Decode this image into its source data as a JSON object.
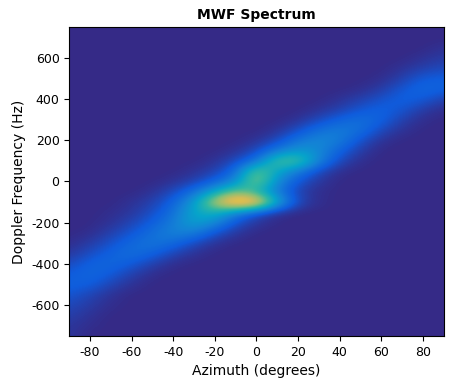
{
  "chart_data": {
    "type": "heatmap",
    "title": "MWF Spectrum",
    "x_label": "Azimuth (degrees)",
    "y_label": "Doppler Frequency (Hz)",
    "xlim": [
      -90,
      90
    ],
    "ylim": [
      -750,
      750
    ],
    "xticks": [
      -80,
      -60,
      -40,
      -20,
      0,
      20,
      40,
      60,
      80
    ],
    "yticks": [
      -600,
      -400,
      -200,
      0,
      200,
      400,
      600
    ],
    "x": [
      -90,
      -80,
      -70,
      -60,
      -50,
      -40,
      -30,
      -20,
      -10,
      0,
      10,
      20,
      30,
      40,
      50,
      60,
      70,
      80,
      90
    ],
    "y": [
      -750,
      -700,
      -650,
      -600,
      -550,
      -500,
      -450,
      -400,
      -350,
      -300,
      -250,
      -200,
      -150,
      -100,
      -50,
      0,
      50,
      100,
      150,
      200,
      250,
      300,
      350,
      400,
      450,
      500,
      550,
      600,
      650,
      700,
      750
    ],
    "cells": [
      [
        8,
        5,
        5,
        5,
        5,
        5,
        5,
        5,
        5,
        5,
        5,
        5,
        5,
        5,
        5,
        5,
        5,
        5,
        5
      ],
      [
        8,
        6,
        5,
        5,
        5,
        5,
        5,
        5,
        5,
        5,
        5,
        5,
        5,
        5,
        5,
        5,
        5,
        5,
        5
      ],
      [
        10,
        7,
        5,
        5,
        5,
        5,
        5,
        5,
        5,
        5,
        5,
        5,
        5,
        5,
        5,
        5,
        5,
        5,
        5
      ],
      [
        12,
        9,
        6,
        5,
        5,
        5,
        5,
        5,
        5,
        5,
        5,
        5,
        5,
        5,
        5,
        5,
        5,
        5,
        5
      ],
      [
        15,
        11,
        7,
        5,
        5,
        5,
        5,
        5,
        5,
        5,
        5,
        5,
        5,
        5,
        5,
        5,
        5,
        5,
        5
      ],
      [
        18,
        17,
        11,
        7,
        5,
        5,
        5,
        5,
        5,
        5,
        5,
        5,
        5,
        5,
        5,
        5,
        5,
        5,
        5
      ],
      [
        16,
        20,
        16,
        10,
        6,
        5,
        5,
        5,
        5,
        5,
        5,
        5,
        5,
        5,
        5,
        5,
        5,
        5,
        5
      ],
      [
        12,
        18,
        20,
        16,
        10,
        6,
        5,
        5,
        5,
        5,
        5,
        5,
        5,
        5,
        5,
        5,
        5,
        5,
        5
      ],
      [
        8,
        13,
        18,
        22,
        18,
        11,
        7,
        5,
        5,
        5,
        5,
        5,
        5,
        5,
        5,
        5,
        5,
        5,
        5
      ],
      [
        6,
        9,
        14,
        20,
        24,
        20,
        12,
        7,
        5,
        5,
        5,
        5,
        5,
        5,
        5,
        5,
        5,
        5,
        5
      ],
      [
        5,
        6,
        10,
        15,
        22,
        28,
        26,
        14,
        8,
        5,
        5,
        5,
        5,
        5,
        5,
        5,
        5,
        5,
        5
      ],
      [
        5,
        5,
        7,
        11,
        17,
        26,
        38,
        30,
        14,
        8,
        5,
        5,
        5,
        5,
        5,
        5,
        5,
        5,
        5
      ],
      [
        5,
        5,
        6,
        8,
        13,
        22,
        40,
        45,
        28,
        14,
        7,
        5,
        5,
        5,
        5,
        5,
        5,
        5,
        5
      ],
      [
        5,
        5,
        5,
        7,
        10,
        18,
        35,
        70,
        95,
        90,
        40,
        12,
        6,
        5,
        5,
        5,
        5,
        5,
        5
      ],
      [
        5,
        5,
        5,
        5,
        7,
        12,
        22,
        40,
        60,
        45,
        25,
        10,
        6,
        5,
        5,
        5,
        5,
        5,
        5
      ],
      [
        5,
        5,
        5,
        5,
        5,
        7,
        10,
        18,
        30,
        65,
        30,
        15,
        8,
        5,
        5,
        5,
        5,
        5,
        5
      ],
      [
        5,
        5,
        5,
        5,
        5,
        5,
        7,
        10,
        20,
        60,
        40,
        25,
        12,
        6,
        5,
        5,
        5,
        5,
        5
      ],
      [
        5,
        5,
        5,
        5,
        5,
        5,
        5,
        7,
        12,
        22,
        55,
        55,
        28,
        12,
        6,
        5,
        5,
        5,
        5
      ],
      [
        5,
        5,
        5,
        5,
        5,
        5,
        5,
        5,
        7,
        12,
        25,
        35,
        30,
        18,
        9,
        5,
        5,
        5,
        5
      ],
      [
        5,
        5,
        5,
        5,
        5,
        5,
        5,
        5,
        5,
        7,
        12,
        24,
        30,
        26,
        14,
        7,
        5,
        5,
        5
      ],
      [
        5,
        5,
        5,
        5,
        5,
        5,
        5,
        5,
        5,
        5,
        7,
        13,
        22,
        26,
        22,
        12,
        7,
        5,
        5
      ],
      [
        5,
        5,
        5,
        5,
        5,
        5,
        5,
        5,
        5,
        5,
        5,
        7,
        12,
        18,
        22,
        18,
        10,
        6,
        5
      ],
      [
        5,
        5,
        5,
        5,
        5,
        5,
        5,
        5,
        5,
        5,
        5,
        5,
        7,
        10,
        15,
        18,
        15,
        9,
        6
      ],
      [
        5,
        5,
        5,
        5,
        5,
        5,
        5,
        5,
        5,
        5,
        5,
        5,
        5,
        7,
        10,
        14,
        18,
        16,
        10
      ],
      [
        5,
        5,
        5,
        5,
        5,
        5,
        5,
        5,
        5,
        5,
        5,
        5,
        5,
        5,
        6,
        9,
        15,
        20,
        18
      ],
      [
        5,
        5,
        5,
        5,
        5,
        5,
        5,
        5,
        5,
        5,
        5,
        5,
        5,
        5,
        5,
        6,
        10,
        16,
        17
      ],
      [
        5,
        5,
        5,
        5,
        5,
        5,
        5,
        5,
        5,
        5,
        5,
        5,
        5,
        5,
        5,
        5,
        7,
        10,
        12
      ],
      [
        5,
        5,
        5,
        5,
        5,
        5,
        5,
        5,
        5,
        5,
        5,
        5,
        5,
        5,
        5,
        5,
        5,
        7,
        9
      ],
      [
        5,
        5,
        5,
        5,
        5,
        5,
        5,
        5,
        5,
        5,
        5,
        5,
        5,
        5,
        5,
        5,
        5,
        5,
        7
      ],
      [
        5,
        5,
        5,
        5,
        5,
        5,
        5,
        5,
        5,
        5,
        5,
        5,
        5,
        5,
        5,
        5,
        5,
        5,
        5
      ],
      [
        5,
        5,
        5,
        5,
        5,
        5,
        5,
        5,
        5,
        5,
        5,
        5,
        5,
        5,
        5,
        5,
        5,
        5,
        5
      ]
    ]
  }
}
